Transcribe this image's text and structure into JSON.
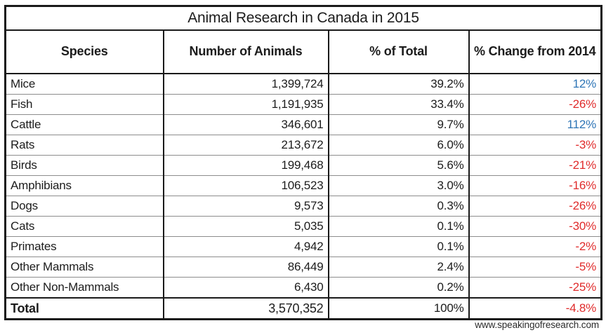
{
  "table": {
    "title": "Animal Research in Canada in 2015",
    "columns": [
      "Species",
      "Number of Animals",
      "% of Total",
      "% Change from 2014"
    ],
    "rows": [
      {
        "species": "Mice",
        "number": "1,399,724",
        "pct_total": "39.2%",
        "change": "12%"
      },
      {
        "species": "Fish",
        "number": "1,191,935",
        "pct_total": "33.4%",
        "change": "-26%"
      },
      {
        "species": "Cattle",
        "number": "346,601",
        "pct_total": "9.7%",
        "change": "112%"
      },
      {
        "species": "Rats",
        "number": "213,672",
        "pct_total": "6.0%",
        "change": "-3%"
      },
      {
        "species": "Birds",
        "number": "199,468",
        "pct_total": "5.6%",
        "change": "-21%"
      },
      {
        "species": "Amphibians",
        "number": "106,523",
        "pct_total": "3.0%",
        "change": "-16%"
      },
      {
        "species": "Dogs",
        "number": "9,573",
        "pct_total": "0.3%",
        "change": "-26%"
      },
      {
        "species": "Cats",
        "number": "5,035",
        "pct_total": "0.1%",
        "change": "-30%"
      },
      {
        "species": "Primates",
        "number": "4,942",
        "pct_total": "0.1%",
        "change": "-2%"
      },
      {
        "species": "Other Mammals",
        "number": "86,449",
        "pct_total": "2.4%",
        "change": "-5%"
      },
      {
        "species": "Other Non-Mammals",
        "number": "6,430",
        "pct_total": "0.2%",
        "change": "-25%"
      }
    ],
    "total_row": {
      "species": "Total",
      "number": "3,570,352",
      "pct_total": "100%",
      "change": "-4.8%"
    }
  },
  "colors": {
    "positive_change": "#2e75b6",
    "negative_change": "#e02b2b",
    "border_black": "#1a1a1a",
    "row_separator_gray": "#8c8c8c"
  },
  "footer": {
    "url": "www.speakingofresearch.com"
  },
  "chart_data": {
    "type": "table",
    "title": "Animal Research in Canada in 2015",
    "columns": [
      "Species",
      "Number of Animals",
      "% of Total",
      "% Change from 2014"
    ],
    "rows": [
      [
        "Mice",
        1399724,
        39.2,
        12
      ],
      [
        "Fish",
        1191935,
        33.4,
        -26
      ],
      [
        "Cattle",
        346601,
        9.7,
        112
      ],
      [
        "Rats",
        213672,
        6.0,
        -3
      ],
      [
        "Birds",
        199468,
        5.6,
        -21
      ],
      [
        "Amphibians",
        106523,
        3.0,
        -16
      ],
      [
        "Dogs",
        9573,
        0.3,
        -26
      ],
      [
        "Cats",
        5035,
        0.1,
        -30
      ],
      [
        "Primates",
        4942,
        0.1,
        -2
      ],
      [
        "Other Mammals",
        86449,
        2.4,
        -5
      ],
      [
        "Other Non-Mammals",
        6430,
        0.2,
        -25
      ]
    ],
    "total": [
      "Total",
      3570352,
      100,
      -4.8
    ],
    "notes": "Positive % change rendered blue, negative % change rendered red",
    "source": "www.speakingofresearch.com"
  }
}
